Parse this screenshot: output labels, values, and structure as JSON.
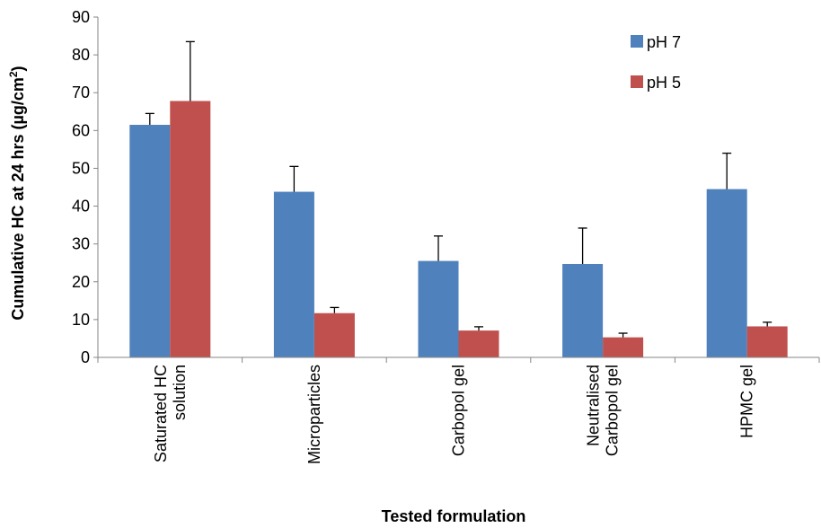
{
  "chart_data": {
    "type": "bar",
    "categories": [
      [
        "Saturated HC",
        "solution"
      ],
      [
        "Microparticles"
      ],
      [
        "Carbopol gel"
      ],
      [
        "Neutralised",
        "Carbopol gel"
      ],
      [
        "HPMC gel"
      ]
    ],
    "series": [
      {
        "name": "pH 7",
        "color": "#4F81BD",
        "values": [
          61.5,
          43.8,
          25.5,
          24.7,
          44.5
        ],
        "errors": [
          3.0,
          6.7,
          6.6,
          9.5,
          9.5
        ]
      },
      {
        "name": "pH 5",
        "color": "#C0504D",
        "values": [
          67.8,
          11.7,
          7.1,
          5.3,
          8.2
        ],
        "errors": [
          15.7,
          1.5,
          1.0,
          1.1,
          1.1
        ]
      }
    ],
    "xlabel": "Tested formulation",
    "ylabel": "Cumulative HC at 24 hrs (µg/cm",
    "ylabel_sup": "2",
    "ylabel_end": ")",
    "ylim": [
      0,
      90
    ],
    "yticks": [
      0,
      10,
      20,
      30,
      40,
      50,
      60,
      70,
      80,
      90
    ],
    "grid": false,
    "legend_position": "top-right"
  }
}
